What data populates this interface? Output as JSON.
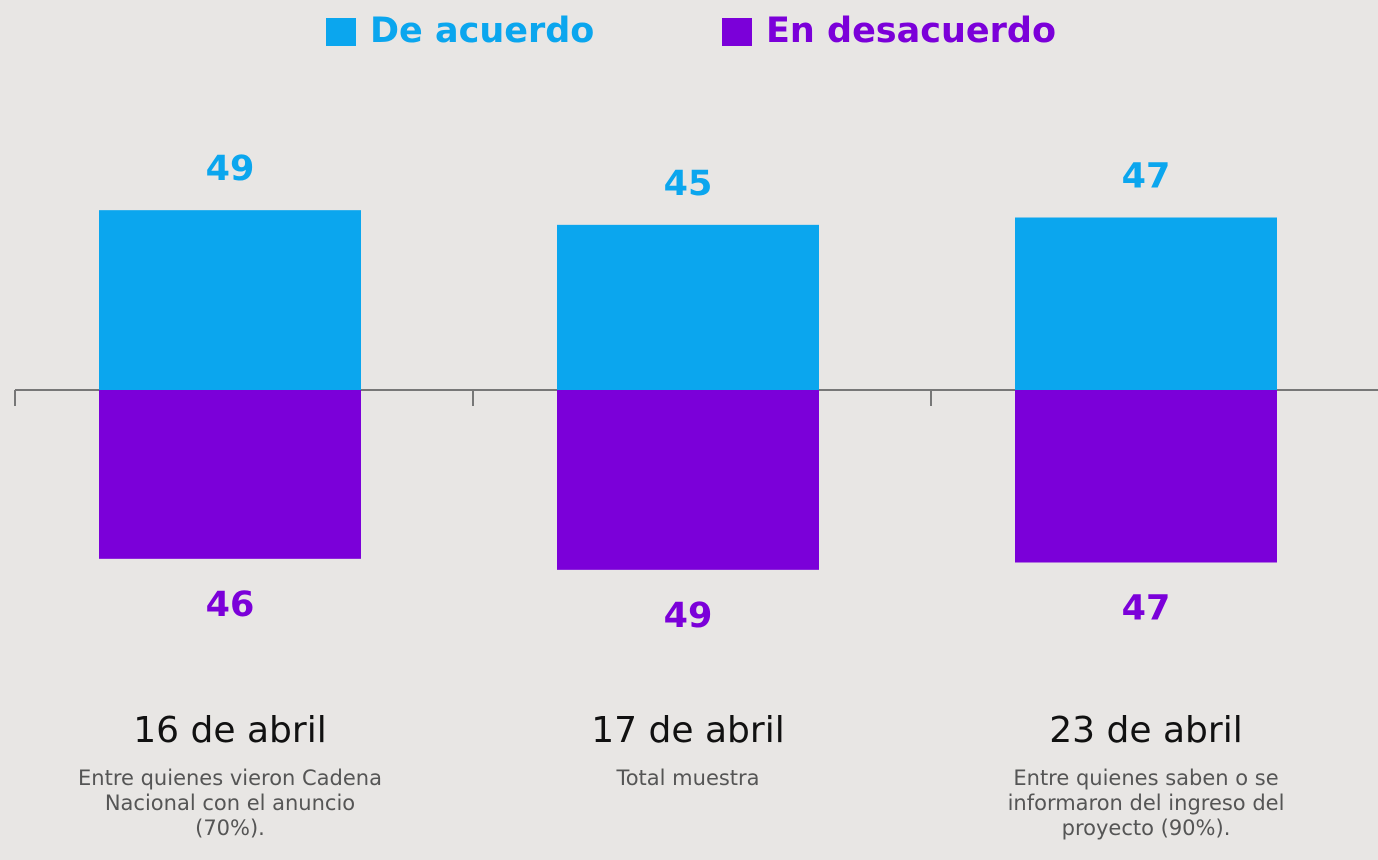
{
  "chart_data": {
    "type": "diverging_bar",
    "categories": [
      "16 de abril",
      "17 de abril",
      "23 de abril"
    ],
    "notes": [
      "Entre quienes vieron Cadena Nacional con el anuncio (70%).",
      "Total muestra",
      "Entre quienes saben o se informaron del ingreso del proyecto (90%)."
    ],
    "series": [
      {
        "name": "De acuerdo",
        "color": "#0ba6ee",
        "values": [
          49,
          45,
          47
        ]
      },
      {
        "name": "En desacuerdo",
        "color": "#7b00d9",
        "values": [
          46,
          49,
          47
        ]
      }
    ]
  }
}
